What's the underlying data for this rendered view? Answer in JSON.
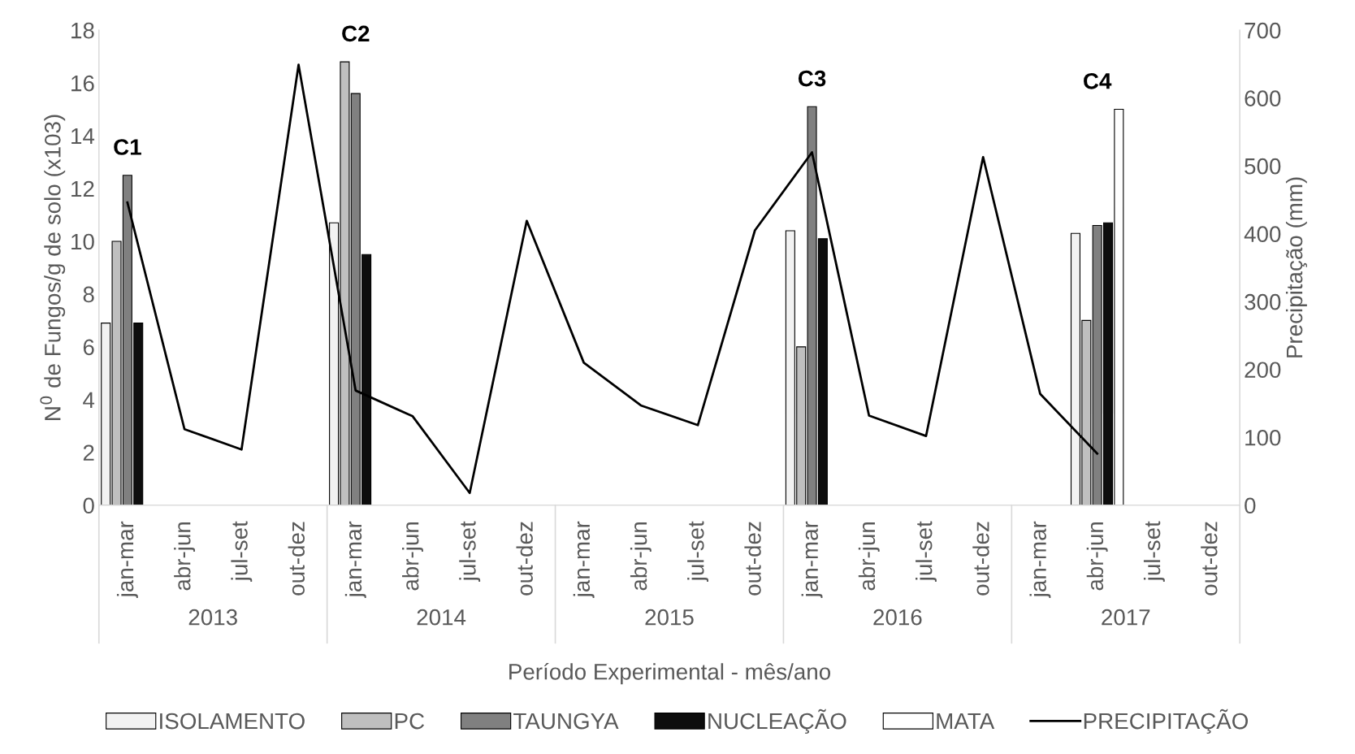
{
  "chart_data": {
    "type": "bar",
    "categories": [
      "jan-mar",
      "abr-jun",
      "jul-set",
      "out-dez",
      "jan-mar",
      "abr-jun",
      "jul-set",
      "out-dez",
      "jan-mar",
      "abr-jun",
      "jul-set",
      "out-dez",
      "jan-mar",
      "abr-jun",
      "jul-set",
      "out-dez",
      "jan-mar",
      "abr-jun",
      "jul-set",
      "out-dez"
    ],
    "xlabel": "Período Experimental - mês/ano",
    "ylabel": "N$^{0}$ de Fungos/g de solo (x103)",
    "y2label": "Precipitação (mm)",
    "ylim": [
      0,
      18
    ],
    "yticks": [
      0,
      2,
      4,
      6,
      8,
      10,
      12,
      14,
      16,
      18
    ],
    "y2lim": [
      0,
      700
    ],
    "y2ticks": [
      0,
      100,
      200,
      300,
      400,
      500,
      600,
      700
    ],
    "grid": false,
    "legend": "bottom",
    "series": [
      {
        "name": "ISOLAMENTO",
        "color": "#f2f2f2",
        "values": [
          6.9,
          null,
          null,
          null,
          10.7,
          null,
          null,
          null,
          null,
          null,
          null,
          null,
          10.4,
          null,
          null,
          null,
          null,
          10.3,
          null,
          null
        ]
      },
      {
        "name": "PC",
        "color": "#bfbfbf",
        "values": [
          10.0,
          null,
          null,
          null,
          16.8,
          null,
          null,
          null,
          null,
          null,
          null,
          null,
          6.0,
          null,
          null,
          null,
          null,
          7.0,
          null,
          null
        ]
      },
      {
        "name": "TAUNGYA",
        "color": "#808080",
        "values": [
          12.5,
          null,
          null,
          null,
          15.6,
          null,
          null,
          null,
          null,
          null,
          null,
          null,
          15.1,
          null,
          null,
          null,
          null,
          10.6,
          null,
          null
        ]
      },
      {
        "name": "NUCLEAÇÃO",
        "color": "#0d0d0d",
        "values": [
          6.9,
          null,
          null,
          null,
          9.5,
          null,
          null,
          null,
          null,
          null,
          null,
          null,
          10.1,
          null,
          null,
          null,
          null,
          10.7,
          null,
          null
        ]
      },
      {
        "name": "MATA",
        "color": "#ffffff",
        "values": [
          null,
          null,
          null,
          null,
          null,
          null,
          null,
          null,
          null,
          null,
          null,
          null,
          null,
          null,
          null,
          null,
          null,
          15.0,
          null,
          null
        ]
      },
      {
        "name": "PRECIPITAÇÃO",
        "type": "line",
        "axis": "y2",
        "color": "#000000",
        "values": [
          446,
          112,
          82,
          649,
          169,
          131,
          18,
          419,
          210,
          147,
          118,
          405,
          520,
          132,
          102,
          513,
          164,
          76,
          null,
          null
        ]
      }
    ],
    "annotations": [
      "C1",
      "C2",
      "C3",
      "C4",
      "2013",
      "2014",
      "2015",
      "2016",
      "2017"
    ]
  }
}
